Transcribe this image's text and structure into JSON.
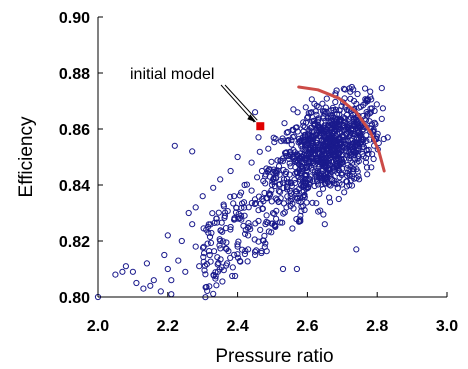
{
  "chart_data": {
    "type": "scatter",
    "title": "",
    "xlabel": "Pressure ratio",
    "ylabel": "Efficiency",
    "xlim": [
      2.0,
      3.0
    ],
    "ylim": [
      0.8,
      0.9
    ],
    "x_ticks": [
      "2.0",
      "2.2",
      "2.4",
      "2.6",
      "2.8",
      "3.0"
    ],
    "y_ticks": [
      "0.80",
      "0.82",
      "0.84",
      "0.86",
      "0.88",
      "0.90"
    ],
    "grid": false,
    "legend": "none",
    "annotation": {
      "text": "initial model",
      "point": [
        2.465,
        0.861
      ]
    },
    "initial_model": {
      "x": 2.465,
      "y": 0.861
    },
    "front_curve": {
      "description": "Pareto front arc",
      "points": [
        [
          2.575,
          0.875
        ],
        [
          2.63,
          0.874
        ],
        [
          2.69,
          0.871
        ],
        [
          2.74,
          0.866
        ],
        [
          2.78,
          0.859
        ],
        [
          2.805,
          0.852
        ],
        [
          2.82,
          0.845
        ]
      ]
    },
    "dense_cluster": {
      "center": [
        2.66,
        0.853
      ],
      "spread": [
        0.075,
        0.008
      ],
      "count": 900
    },
    "sampled_points": [
      [
        2.0,
        0.8
      ],
      [
        2.05,
        0.808
      ],
      [
        2.07,
        0.809
      ],
      [
        2.08,
        0.811
      ],
      [
        2.1,
        0.809
      ],
      [
        2.11,
        0.805
      ],
      [
        2.13,
        0.803
      ],
      [
        2.14,
        0.812
      ],
      [
        2.15,
        0.804
      ],
      [
        2.16,
        0.806
      ],
      [
        2.18,
        0.802
      ],
      [
        2.19,
        0.815
      ],
      [
        2.2,
        0.81
      ],
      [
        2.2,
        0.822
      ],
      [
        2.21,
        0.806
      ],
      [
        2.21,
        0.801
      ],
      [
        2.23,
        0.813
      ],
      [
        2.24,
        0.82
      ],
      [
        2.25,
        0.809
      ],
      [
        2.26,
        0.83
      ],
      [
        2.27,
        0.826
      ],
      [
        2.28,
        0.818
      ],
      [
        2.28,
        0.832
      ],
      [
        2.29,
        0.811
      ],
      [
        2.3,
        0.836
      ],
      [
        2.31,
        0.824
      ],
      [
        2.32,
        0.815
      ],
      [
        2.33,
        0.839
      ],
      [
        2.34,
        0.828
      ],
      [
        2.35,
        0.82
      ],
      [
        2.35,
        0.842
      ],
      [
        2.36,
        0.833
      ],
      [
        2.37,
        0.812
      ],
      [
        2.38,
        0.825
      ],
      [
        2.38,
        0.845
      ],
      [
        2.39,
        0.836
      ],
      [
        2.4,
        0.818
      ],
      [
        2.4,
        0.85
      ],
      [
        2.41,
        0.829
      ],
      [
        2.42,
        0.84
      ],
      [
        2.43,
        0.822
      ],
      [
        2.44,
        0.838
      ],
      [
        2.44,
        0.848
      ],
      [
        2.45,
        0.815
      ],
      [
        2.46,
        0.831
      ],
      [
        2.46,
        0.857
      ],
      [
        2.47,
        0.845
      ],
      [
        2.48,
        0.826
      ],
      [
        2.49,
        0.837
      ],
      [
        2.22,
        0.854
      ],
      [
        2.27,
        0.852
      ],
      [
        2.53,
        0.81
      ],
      [
        2.57,
        0.81
      ],
      [
        2.74,
        0.817
      ],
      [
        2.83,
        0.857
      ],
      [
        2.45,
        0.866
      ],
      [
        2.56,
        0.867
      ],
      [
        2.62,
        0.869
      ],
      [
        2.68,
        0.872
      ],
      [
        2.74,
        0.869
      ],
      [
        2.54,
        0.832
      ],
      [
        2.58,
        0.829
      ],
      [
        2.65,
        0.826
      ],
      [
        2.69,
        0.835
      ],
      [
        2.72,
        0.84
      ]
    ]
  }
}
